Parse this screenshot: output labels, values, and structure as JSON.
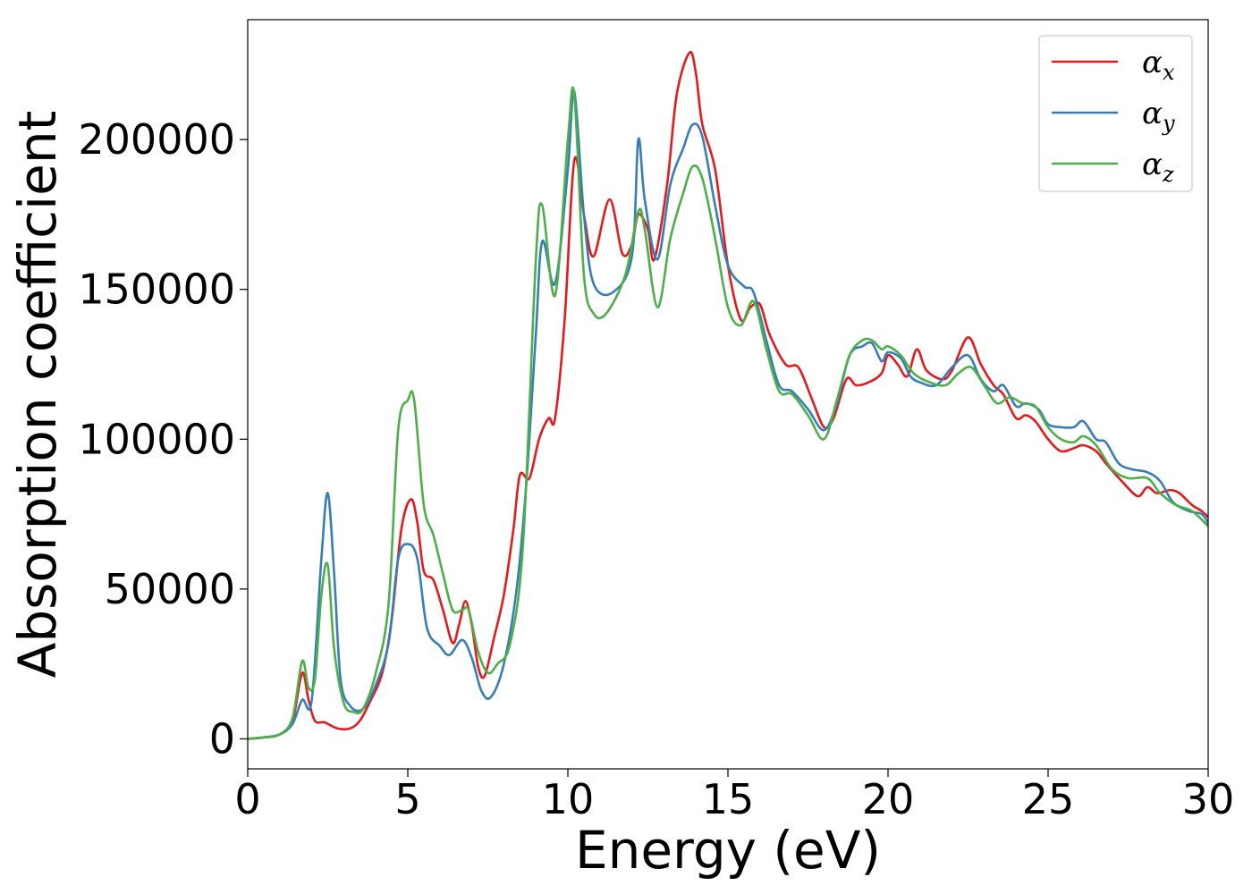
{
  "chart_data": {
    "type": "line",
    "xlabel": "Energy (eV)",
    "ylabel": "Absorption coefficient",
    "xlim": [
      0,
      30
    ],
    "ylim": [
      -10000,
      240000
    ],
    "xticks": [
      0,
      5,
      10,
      15,
      20,
      25,
      30
    ],
    "yticks": [
      0,
      50000,
      100000,
      150000,
      200000
    ],
    "xtick_labels": [
      "0",
      "5",
      "10",
      "15",
      "20",
      "25",
      "30"
    ],
    "ytick_labels": [
      "0",
      "50000",
      "100000",
      "150000",
      "200000"
    ],
    "grid": false,
    "legend_position": "top-right",
    "series": [
      {
        "name": "α_x",
        "legend_base": "α",
        "legend_sub": "x",
        "color": "#e41a1c",
        "points": [
          [
            0,
            0
          ],
          [
            0.5,
            500
          ],
          [
            1,
            1500
          ],
          [
            1.4,
            6000
          ],
          [
            1.7,
            22000
          ],
          [
            1.9,
            13000
          ],
          [
            2.1,
            6000
          ],
          [
            2.4,
            5500
          ],
          [
            2.8,
            3500
          ],
          [
            3.2,
            3500
          ],
          [
            3.5,
            6000
          ],
          [
            3.8,
            12000
          ],
          [
            4.2,
            22000
          ],
          [
            4.5,
            40000
          ],
          [
            4.8,
            70000
          ],
          [
            5.1,
            80000
          ],
          [
            5.3,
            72000
          ],
          [
            5.5,
            56000
          ],
          [
            5.8,
            53000
          ],
          [
            6.1,
            43000
          ],
          [
            6.4,
            32000
          ],
          [
            6.6,
            38000
          ],
          [
            6.8,
            46000
          ],
          [
            7.0,
            38000
          ],
          [
            7.2,
            24000
          ],
          [
            7.4,
            21000
          ],
          [
            7.7,
            34000
          ],
          [
            8.0,
            48000
          ],
          [
            8.3,
            70000
          ],
          [
            8.5,
            88000
          ],
          [
            8.8,
            87000
          ],
          [
            9.1,
            100000
          ],
          [
            9.4,
            107000
          ],
          [
            9.6,
            107000
          ],
          [
            9.9,
            140000
          ],
          [
            10.2,
            193000
          ],
          [
            10.5,
            175000
          ],
          [
            10.8,
            161000
          ],
          [
            11.3,
            180000
          ],
          [
            11.7,
            162000
          ],
          [
            12.0,
            165000
          ],
          [
            12.2,
            175000
          ],
          [
            12.5,
            170000
          ],
          [
            12.7,
            160000
          ],
          [
            13.1,
            185000
          ],
          [
            13.4,
            215000
          ],
          [
            13.8,
            229000
          ],
          [
            14.0,
            222000
          ],
          [
            14.2,
            205000
          ],
          [
            14.6,
            190000
          ],
          [
            15.0,
            158000
          ],
          [
            15.4,
            140000
          ],
          [
            15.7,
            144000
          ],
          [
            16.0,
            145000
          ],
          [
            16.3,
            135000
          ],
          [
            16.8,
            125000
          ],
          [
            17.2,
            124000
          ],
          [
            17.6,
            114000
          ],
          [
            18.0,
            104000
          ],
          [
            18.3,
            107000
          ],
          [
            18.7,
            120000
          ],
          [
            19.0,
            118000
          ],
          [
            19.4,
            119000
          ],
          [
            19.8,
            122000
          ],
          [
            20.0,
            128000
          ],
          [
            20.3,
            125000
          ],
          [
            20.6,
            121000
          ],
          [
            20.9,
            130000
          ],
          [
            21.2,
            123000
          ],
          [
            21.7,
            120000
          ],
          [
            22.0,
            123000
          ],
          [
            22.5,
            134000
          ],
          [
            22.9,
            125000
          ],
          [
            23.3,
            118000
          ],
          [
            23.6,
            115000
          ],
          [
            24.0,
            107000
          ],
          [
            24.3,
            108000
          ],
          [
            24.6,
            106000
          ],
          [
            25.0,
            100000
          ],
          [
            25.4,
            96000
          ],
          [
            25.8,
            97000
          ],
          [
            26.1,
            98000
          ],
          [
            26.5,
            96000
          ],
          [
            26.8,
            92000
          ],
          [
            27.3,
            86000
          ],
          [
            27.8,
            81000
          ],
          [
            28.1,
            84000
          ],
          [
            28.4,
            82000
          ],
          [
            28.8,
            83000
          ],
          [
            29.1,
            82000
          ],
          [
            29.5,
            78000
          ],
          [
            29.8,
            76000
          ],
          [
            30,
            74000
          ]
        ]
      },
      {
        "name": "α_y",
        "legend_base": "α",
        "legend_sub": "y",
        "color": "#377eb8",
        "points": [
          [
            0,
            0
          ],
          [
            0.5,
            500
          ],
          [
            1,
            1500
          ],
          [
            1.4,
            5000
          ],
          [
            1.7,
            13000
          ],
          [
            2.0,
            13000
          ],
          [
            2.3,
            60000
          ],
          [
            2.5,
            82000
          ],
          [
            2.7,
            55000
          ],
          [
            2.9,
            20000
          ],
          [
            3.2,
            11000
          ],
          [
            3.6,
            10000
          ],
          [
            4.0,
            18000
          ],
          [
            4.4,
            32000
          ],
          [
            4.7,
            60000
          ],
          [
            5.0,
            65000
          ],
          [
            5.3,
            60000
          ],
          [
            5.6,
            37000
          ],
          [
            6.0,
            31000
          ],
          [
            6.3,
            28000
          ],
          [
            6.7,
            33000
          ],
          [
            7.0,
            27000
          ],
          [
            7.3,
            16000
          ],
          [
            7.6,
            14000
          ],
          [
            8.0,
            25000
          ],
          [
            8.4,
            50000
          ],
          [
            8.7,
            85000
          ],
          [
            9.0,
            135000
          ],
          [
            9.2,
            166000
          ],
          [
            9.6,
            152000
          ],
          [
            10.0,
            190000
          ],
          [
            10.2,
            216000
          ],
          [
            10.5,
            175000
          ],
          [
            10.8,
            152000
          ],
          [
            11.4,
            149000
          ],
          [
            12.0,
            161000
          ],
          [
            12.2,
            200000
          ],
          [
            12.4,
            180000
          ],
          [
            12.8,
            160000
          ],
          [
            13.2,
            185000
          ],
          [
            13.6,
            197000
          ],
          [
            13.9,
            205000
          ],
          [
            14.2,
            201000
          ],
          [
            14.6,
            178000
          ],
          [
            15.0,
            158000
          ],
          [
            15.5,
            151000
          ],
          [
            15.8,
            149000
          ],
          [
            16.2,
            133000
          ],
          [
            16.6,
            118000
          ],
          [
            17.0,
            116000
          ],
          [
            17.5,
            110000
          ],
          [
            18.0,
            103000
          ],
          [
            18.4,
            112000
          ],
          [
            18.8,
            128000
          ],
          [
            19.2,
            131000
          ],
          [
            19.5,
            132000
          ],
          [
            19.8,
            126000
          ],
          [
            20.0,
            129000
          ],
          [
            20.4,
            127000
          ],
          [
            20.7,
            121000
          ],
          [
            21.0,
            119000
          ],
          [
            21.5,
            118000
          ],
          [
            22.0,
            124000
          ],
          [
            22.5,
            128000
          ],
          [
            22.9,
            120000
          ],
          [
            23.3,
            116000
          ],
          [
            23.6,
            118000
          ],
          [
            24.0,
            111000
          ],
          [
            24.3,
            112000
          ],
          [
            24.7,
            110000
          ],
          [
            25.0,
            105000
          ],
          [
            25.4,
            104000
          ],
          [
            25.8,
            104000
          ],
          [
            26.1,
            106000
          ],
          [
            26.5,
            100000
          ],
          [
            26.8,
            99000
          ],
          [
            27.2,
            92000
          ],
          [
            27.6,
            90000
          ],
          [
            28.1,
            89000
          ],
          [
            28.5,
            86000
          ],
          [
            28.9,
            79000
          ],
          [
            29.4,
            76000
          ],
          [
            29.8,
            75000
          ],
          [
            30,
            72000
          ]
        ]
      },
      {
        "name": "α_z",
        "legend_base": "α",
        "legend_sub": "z",
        "color": "#4daf4a",
        "points": [
          [
            0,
            0
          ],
          [
            0.5,
            500
          ],
          [
            1,
            1500
          ],
          [
            1.4,
            7000
          ],
          [
            1.7,
            26000
          ],
          [
            1.9,
            17000
          ],
          [
            2.1,
            20000
          ],
          [
            2.3,
            48000
          ],
          [
            2.5,
            58000
          ],
          [
            2.7,
            30000
          ],
          [
            3.0,
            12000
          ],
          [
            3.3,
            9000
          ],
          [
            3.6,
            10000
          ],
          [
            4.0,
            22000
          ],
          [
            4.4,
            45000
          ],
          [
            4.7,
            103000
          ],
          [
            5.0,
            113000
          ],
          [
            5.2,
            113000
          ],
          [
            5.5,
            78000
          ],
          [
            5.8,
            68000
          ],
          [
            6.1,
            55000
          ],
          [
            6.4,
            43000
          ],
          [
            6.7,
            43000
          ],
          [
            6.9,
            43000
          ],
          [
            7.2,
            29000
          ],
          [
            7.5,
            22000
          ],
          [
            7.8,
            25000
          ],
          [
            8.2,
            32000
          ],
          [
            8.6,
            65000
          ],
          [
            9.0,
            160000
          ],
          [
            9.2,
            178000
          ],
          [
            9.6,
            148000
          ],
          [
            10.0,
            200000
          ],
          [
            10.2,
            215000
          ],
          [
            10.5,
            155000
          ],
          [
            10.8,
            142000
          ],
          [
            11.2,
            142000
          ],
          [
            11.8,
            155000
          ],
          [
            12.2,
            176000
          ],
          [
            12.4,
            170000
          ],
          [
            12.8,
            144000
          ],
          [
            13.2,
            167000
          ],
          [
            13.6,
            182000
          ],
          [
            13.9,
            191000
          ],
          [
            14.2,
            187000
          ],
          [
            14.6,
            167000
          ],
          [
            15.0,
            144000
          ],
          [
            15.4,
            138000
          ],
          [
            15.8,
            146000
          ],
          [
            16.2,
            130000
          ],
          [
            16.6,
            116000
          ],
          [
            17.0,
            115000
          ],
          [
            17.5,
            108000
          ],
          [
            18.0,
            100000
          ],
          [
            18.4,
            113000
          ],
          [
            18.8,
            128000
          ],
          [
            19.2,
            133000
          ],
          [
            19.5,
            133000
          ],
          [
            19.8,
            130000
          ],
          [
            20.0,
            131000
          ],
          [
            20.4,
            128000
          ],
          [
            20.8,
            122000
          ],
          [
            21.3,
            119000
          ],
          [
            21.8,
            118000
          ],
          [
            22.2,
            122000
          ],
          [
            22.6,
            124000
          ],
          [
            23.0,
            118000
          ],
          [
            23.4,
            112000
          ],
          [
            23.8,
            114000
          ],
          [
            24.2,
            112000
          ],
          [
            24.6,
            111000
          ],
          [
            25.0,
            104000
          ],
          [
            25.4,
            100000
          ],
          [
            25.8,
            99000
          ],
          [
            26.1,
            101000
          ],
          [
            26.5,
            98000
          ],
          [
            27.0,
            90000
          ],
          [
            27.5,
            87000
          ],
          [
            28.1,
            87000
          ],
          [
            28.5,
            82000
          ],
          [
            29.0,
            78000
          ],
          [
            29.5,
            76000
          ],
          [
            30,
            71000
          ]
        ]
      }
    ]
  }
}
